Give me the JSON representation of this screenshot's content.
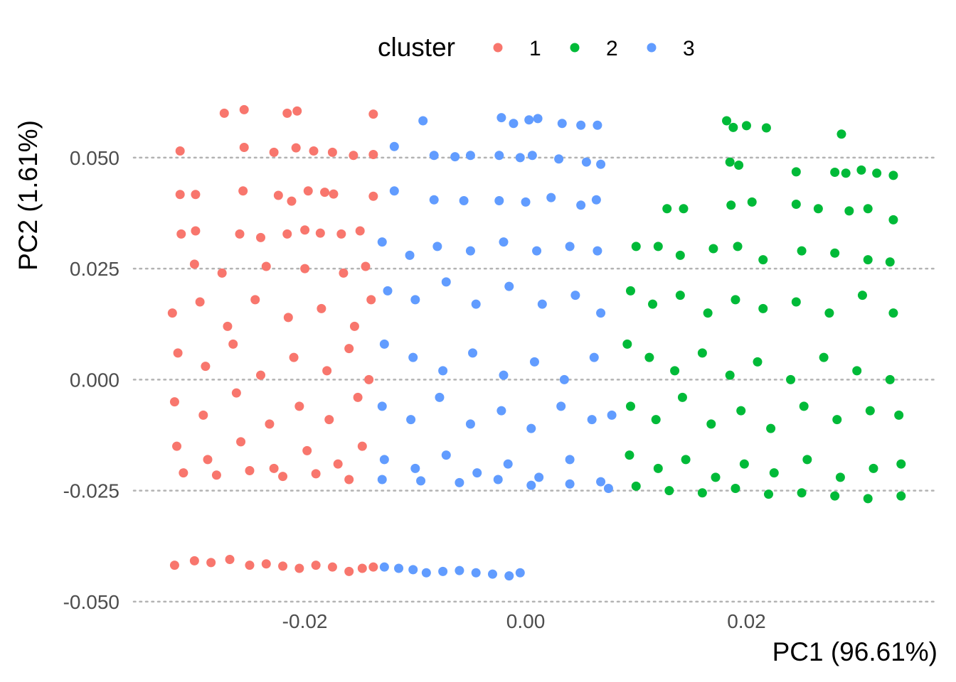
{
  "chart_data": {
    "type": "scatter",
    "xlabel": "PC1 (96.61%)",
    "ylabel": "PC2 (1.61%)",
    "xlim": [
      -0.0355,
      0.0373
    ],
    "ylim": [
      -0.0505,
      0.0615
    ],
    "x_ticks": [
      -0.02,
      0.0,
      0.02
    ],
    "x_tick_labels": [
      "-0.02",
      "0.00",
      "0.02"
    ],
    "y_ticks": [
      -0.05,
      -0.025,
      0.0,
      0.025,
      0.05
    ],
    "y_tick_labels": [
      "-0.050",
      "-0.025",
      "0.000",
      "0.025",
      "0.050"
    ],
    "grid": "horizontal dotted",
    "legend": {
      "title": "cluster",
      "position": "top",
      "entries": [
        {
          "label": "1",
          "color": "#F8766D"
        },
        {
          "label": "2",
          "color": "#00BA38"
        },
        {
          "label": "3",
          "color": "#619CFF"
        }
      ]
    },
    "series": [
      {
        "name": "1",
        "color": "#F8766D",
        "points": [
          [
            -0.0313,
            0.0515
          ],
          [
            -0.0255,
            0.0523
          ],
          [
            -0.0228,
            0.0512
          ],
          [
            -0.0208,
            0.0522
          ],
          [
            -0.0192,
            0.0515
          ],
          [
            -0.0175,
            0.0512
          ],
          [
            -0.0156,
            0.0505
          ],
          [
            -0.0138,
            0.0507
          ],
          [
            -0.0313,
            0.0417
          ],
          [
            -0.0299,
            0.0417
          ],
          [
            -0.0256,
            0.0425
          ],
          [
            -0.0224,
            0.0415
          ],
          [
            -0.0212,
            0.0402
          ],
          [
            -0.0197,
            0.0425
          ],
          [
            -0.0182,
            0.0422
          ],
          [
            -0.0174,
            0.0418
          ],
          [
            -0.0138,
            0.0413
          ],
          [
            -0.0273,
            0.06
          ],
          [
            -0.0255,
            0.0608
          ],
          [
            -0.0216,
            0.06
          ],
          [
            -0.0207,
            0.0605
          ],
          [
            -0.0138,
            0.0598
          ],
          [
            -0.0312,
            0.0328
          ],
          [
            -0.0299,
            0.0335
          ],
          [
            -0.0259,
            0.0328
          ],
          [
            -0.024,
            0.032
          ],
          [
            -0.0216,
            0.0328
          ],
          [
            -0.02,
            0.0337
          ],
          [
            -0.0186,
            0.033
          ],
          [
            -0.0167,
            0.0328
          ],
          [
            -0.015,
            0.0335
          ],
          [
            -0.03,
            0.026
          ],
          [
            -0.0275,
            0.024
          ],
          [
            -0.0235,
            0.0255
          ],
          [
            -0.02,
            0.025
          ],
          [
            -0.0165,
            0.024
          ],
          [
            -0.0145,
            0.0255
          ],
          [
            -0.032,
            0.015
          ],
          [
            -0.0295,
            0.0175
          ],
          [
            -0.027,
            0.012
          ],
          [
            -0.0245,
            0.018
          ],
          [
            -0.0215,
            0.014
          ],
          [
            -0.0185,
            0.016
          ],
          [
            -0.0155,
            0.012
          ],
          [
            -0.014,
            0.018
          ],
          [
            -0.0315,
            0.006
          ],
          [
            -0.029,
            0.003
          ],
          [
            -0.0265,
            0.008
          ],
          [
            -0.024,
            0.001
          ],
          [
            -0.021,
            0.005
          ],
          [
            -0.018,
            0.002
          ],
          [
            -0.016,
            0.007
          ],
          [
            -0.0142,
            0.0
          ],
          [
            -0.0318,
            -0.005
          ],
          [
            -0.0292,
            -0.008
          ],
          [
            -0.0262,
            -0.003
          ],
          [
            -0.0232,
            -0.01
          ],
          [
            -0.0205,
            -0.006
          ],
          [
            -0.0178,
            -0.009
          ],
          [
            -0.0152,
            -0.004
          ],
          [
            -0.0316,
            -0.015
          ],
          [
            -0.0288,
            -0.018
          ],
          [
            -0.0258,
            -0.014
          ],
          [
            -0.0228,
            -0.02
          ],
          [
            -0.0198,
            -0.016
          ],
          [
            -0.017,
            -0.019
          ],
          [
            -0.0148,
            -0.015
          ],
          [
            -0.031,
            -0.021
          ],
          [
            -0.028,
            -0.0215
          ],
          [
            -0.025,
            -0.0205
          ],
          [
            -0.022,
            -0.0218
          ],
          [
            -0.019,
            -0.0212
          ],
          [
            -0.016,
            -0.0225
          ],
          [
            -0.0318,
            -0.0418
          ],
          [
            -0.03,
            -0.0408
          ],
          [
            -0.0285,
            -0.0412
          ],
          [
            -0.0268,
            -0.0405
          ],
          [
            -0.025,
            -0.0418
          ],
          [
            -0.0235,
            -0.0415
          ],
          [
            -0.022,
            -0.042
          ],
          [
            -0.0205,
            -0.0425
          ],
          [
            -0.019,
            -0.0418
          ],
          [
            -0.0175,
            -0.0422
          ],
          [
            -0.016,
            -0.0432
          ],
          [
            -0.0148,
            -0.0425
          ],
          [
            -0.0138,
            -0.0422
          ]
        ]
      },
      {
        "name": "2",
        "color": "#00BA38",
        "points": [
          [
            0.0182,
            0.0583
          ],
          [
            0.0188,
            0.0568
          ],
          [
            0.02,
            0.0572
          ],
          [
            0.0218,
            0.0567
          ],
          [
            0.0286,
            0.0553
          ],
          [
            0.0185,
            0.049
          ],
          [
            0.0193,
            0.0483
          ],
          [
            0.0245,
            0.0468
          ],
          [
            0.028,
            0.0467
          ],
          [
            0.029,
            0.0465
          ],
          [
            0.0304,
            0.0472
          ],
          [
            0.0318,
            0.0465
          ],
          [
            0.0333,
            0.046
          ],
          [
            0.0128,
            0.0385
          ],
          [
            0.0143,
            0.0385
          ],
          [
            0.0186,
            0.0393
          ],
          [
            0.0205,
            0.04
          ],
          [
            0.0245,
            0.0395
          ],
          [
            0.0265,
            0.0385
          ],
          [
            0.0293,
            0.038
          ],
          [
            0.031,
            0.0385
          ],
          [
            0.0333,
            0.036
          ],
          [
            0.01,
            0.03
          ],
          [
            0.012,
            0.03
          ],
          [
            0.014,
            0.028
          ],
          [
            0.017,
            0.0295
          ],
          [
            0.0192,
            0.03
          ],
          [
            0.0215,
            0.027
          ],
          [
            0.025,
            0.029
          ],
          [
            0.028,
            0.0285
          ],
          [
            0.031,
            0.027
          ],
          [
            0.033,
            0.0265
          ],
          [
            0.0095,
            0.02
          ],
          [
            0.0115,
            0.017
          ],
          [
            0.014,
            0.019
          ],
          [
            0.0165,
            0.015
          ],
          [
            0.019,
            0.018
          ],
          [
            0.0215,
            0.016
          ],
          [
            0.0245,
            0.0175
          ],
          [
            0.0275,
            0.015
          ],
          [
            0.0305,
            0.019
          ],
          [
            0.0333,
            0.015
          ],
          [
            0.0092,
            0.008
          ],
          [
            0.0112,
            0.005
          ],
          [
            0.0135,
            0.002
          ],
          [
            0.016,
            0.006
          ],
          [
            0.0185,
            0.001
          ],
          [
            0.021,
            0.004
          ],
          [
            0.024,
            0.0
          ],
          [
            0.027,
            0.005
          ],
          [
            0.03,
            0.002
          ],
          [
            0.033,
            0.0
          ],
          [
            0.0095,
            -0.006
          ],
          [
            0.0118,
            -0.009
          ],
          [
            0.0142,
            -0.004
          ],
          [
            0.0168,
            -0.01
          ],
          [
            0.0195,
            -0.007
          ],
          [
            0.0222,
            -0.011
          ],
          [
            0.0252,
            -0.006
          ],
          [
            0.0282,
            -0.009
          ],
          [
            0.0312,
            -0.007
          ],
          [
            0.0338,
            -0.008
          ],
          [
            0.0094,
            -0.017
          ],
          [
            0.012,
            -0.02
          ],
          [
            0.0145,
            -0.018
          ],
          [
            0.0172,
            -0.022
          ],
          [
            0.0198,
            -0.019
          ],
          [
            0.0225,
            -0.021
          ],
          [
            0.0255,
            -0.018
          ],
          [
            0.0285,
            -0.022
          ],
          [
            0.0315,
            -0.02
          ],
          [
            0.034,
            -0.019
          ],
          [
            0.01,
            -0.024
          ],
          [
            0.013,
            -0.025
          ],
          [
            0.016,
            -0.0255
          ],
          [
            0.019,
            -0.0245
          ],
          [
            0.022,
            -0.0258
          ],
          [
            0.025,
            -0.0255
          ],
          [
            0.028,
            -0.0262
          ],
          [
            0.031,
            -0.0268
          ],
          [
            0.034,
            -0.0262
          ]
        ]
      },
      {
        "name": "3",
        "color": "#619CFF",
        "points": [
          [
            -0.0093,
            0.0583
          ],
          [
            -0.0022,
            0.059
          ],
          [
            -0.0011,
            0.0577
          ],
          [
            0.0003,
            0.0585
          ],
          [
            0.0011,
            0.0588
          ],
          [
            0.0033,
            0.0577
          ],
          [
            0.005,
            0.0573
          ],
          [
            0.0065,
            0.0573
          ],
          [
            -0.0119,
            0.0525
          ],
          [
            -0.0083,
            0.0505
          ],
          [
            -0.0064,
            0.0502
          ],
          [
            -0.005,
            0.0505
          ],
          [
            -0.0024,
            0.0505
          ],
          [
            -0.0005,
            0.05
          ],
          [
            0.0006,
            0.0505
          ],
          [
            0.003,
            0.0497
          ],
          [
            0.0055,
            0.049
          ],
          [
            0.0068,
            0.0485
          ],
          [
            -0.0119,
            0.0425
          ],
          [
            -0.0083,
            0.0405
          ],
          [
            -0.0056,
            0.0403
          ],
          [
            -0.0024,
            0.0403
          ],
          [
            0.0,
            0.04
          ],
          [
            0.0023,
            0.041
          ],
          [
            0.005,
            0.0393
          ],
          [
            0.0064,
            0.0405
          ],
          [
            -0.013,
            0.031
          ],
          [
            -0.0105,
            0.028
          ],
          [
            -0.008,
            0.03
          ],
          [
            -0.005,
            0.029
          ],
          [
            -0.002,
            0.031
          ],
          [
            0.001,
            0.029
          ],
          [
            0.004,
            0.03
          ],
          [
            0.0065,
            0.029
          ],
          [
            -0.0125,
            0.02
          ],
          [
            -0.01,
            0.018
          ],
          [
            -0.0072,
            0.022
          ],
          [
            -0.0045,
            0.017
          ],
          [
            -0.0015,
            0.021
          ],
          [
            0.0015,
            0.017
          ],
          [
            0.0045,
            0.019
          ],
          [
            0.0068,
            0.015
          ],
          [
            -0.0128,
            0.008
          ],
          [
            -0.0102,
            0.005
          ],
          [
            -0.0075,
            0.002
          ],
          [
            -0.0048,
            0.006
          ],
          [
            -0.002,
            0.001
          ],
          [
            0.0008,
            0.004
          ],
          [
            0.0035,
            0.0
          ],
          [
            0.0062,
            0.005
          ],
          [
            -0.013,
            -0.006
          ],
          [
            -0.0104,
            -0.009
          ],
          [
            -0.0078,
            -0.004
          ],
          [
            -0.005,
            -0.01
          ],
          [
            -0.0022,
            -0.007
          ],
          [
            0.0005,
            -0.011
          ],
          [
            0.0032,
            -0.006
          ],
          [
            0.006,
            -0.009
          ],
          [
            0.0078,
            -0.008
          ],
          [
            -0.0128,
            -0.018
          ],
          [
            -0.01,
            -0.02
          ],
          [
            -0.0072,
            -0.017
          ],
          [
            -0.0044,
            -0.021
          ],
          [
            -0.0016,
            -0.019
          ],
          [
            0.0012,
            -0.022
          ],
          [
            0.004,
            -0.018
          ],
          [
            0.0068,
            -0.023
          ],
          [
            -0.013,
            -0.0225
          ],
          [
            -0.0095,
            -0.0228
          ],
          [
            -0.006,
            -0.0232
          ],
          [
            -0.0025,
            -0.0225
          ],
          [
            0.0005,
            -0.0238
          ],
          [
            0.004,
            -0.0235
          ],
          [
            0.0075,
            -0.0245
          ],
          [
            -0.0128,
            -0.0422
          ],
          [
            -0.0115,
            -0.0425
          ],
          [
            -0.0102,
            -0.0428
          ],
          [
            -0.009,
            -0.0435
          ],
          [
            -0.0075,
            -0.0432
          ],
          [
            -0.006,
            -0.043
          ],
          [
            -0.0045,
            -0.0435
          ],
          [
            -0.003,
            -0.0438
          ],
          [
            -0.0015,
            -0.0442
          ],
          [
            -0.0005,
            -0.0435
          ]
        ]
      }
    ]
  }
}
